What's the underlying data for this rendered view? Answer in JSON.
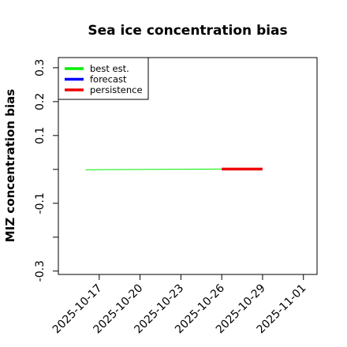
{
  "chart_data": {
    "type": "line",
    "title": "Sea ice concentration bias",
    "xlabel": "",
    "ylabel": "MIZ concentration bias",
    "xlim": [
      "2025-10-14",
      "2025-11-02"
    ],
    "ylim": [
      -0.31,
      0.33
    ],
    "x_ticks": [
      "2025-10-17",
      "2025-10-20",
      "2025-10-23",
      "2025-10-26",
      "2025-10-29",
      "2025-11-01"
    ],
    "x_tick_minor": [
      "2025-10-17",
      "2025-10-20",
      "2025-10-23",
      "2025-10-26",
      "2025-10-29",
      "2025-11-01"
    ],
    "highlighted_tick": "2025-10-23",
    "highlight_color": "#228b22",
    "y_ticks": [
      -0.3,
      -0.2,
      -0.1,
      0,
      0.1,
      0.2,
      0.3
    ],
    "y_tick_labels": [
      "-0.3",
      "",
      "-0.1",
      "",
      "0.1",
      "0.2",
      "0.3"
    ],
    "grid": false,
    "legend_position": "top-left",
    "series": [
      {
        "name": "best est.",
        "color": "#00ee00",
        "x": [
          "2025-10-16",
          "2025-10-26"
        ],
        "y": [
          -0.001,
          0.001
        ]
      },
      {
        "name": "forecast",
        "color": "#0000ff",
        "x": [],
        "y": []
      },
      {
        "name": "persistence",
        "color": "#ee0000",
        "x": [
          "2025-10-26",
          "2025-10-29"
        ],
        "y": [
          0.001,
          0.001
        ]
      }
    ]
  }
}
